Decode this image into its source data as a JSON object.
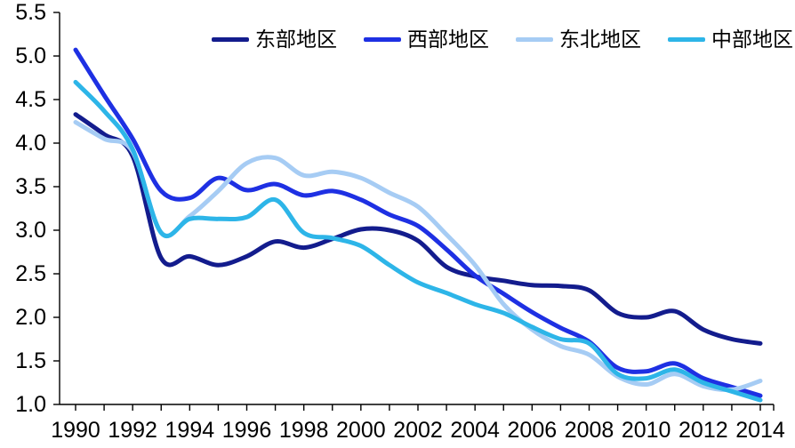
{
  "chart_data": {
    "type": "line",
    "title": "",
    "xlabel": "",
    "ylabel": "",
    "x": [
      1990,
      1991,
      1992,
      1993,
      1994,
      1995,
      1996,
      1997,
      1998,
      1999,
      2000,
      2001,
      2002,
      2003,
      2004,
      2005,
      2006,
      2007,
      2008,
      2009,
      2010,
      2011,
      2012,
      2013,
      2014
    ],
    "x_tick_label_years": [
      1990,
      1992,
      1994,
      1996,
      1998,
      2000,
      2002,
      2004,
      2006,
      2008,
      2010,
      2012,
      2014
    ],
    "x_tick_labels": [
      "1990",
      "1992",
      "1994",
      "1996",
      "1998",
      "2000",
      "2002",
      "2004",
      "2006",
      "2008",
      "2010",
      "2012",
      "2014"
    ],
    "y_tick_labels": [
      "5.5",
      "5.0",
      "4.5",
      "4.0",
      "3.5",
      "3.0",
      "2.5",
      "2.0",
      "1.5",
      "1.0"
    ],
    "y_tick_values": [
      5.5,
      5.0,
      4.5,
      4.0,
      3.5,
      3.0,
      2.5,
      2.0,
      1.5,
      1.0
    ],
    "ylim": [
      1.0,
      5.5
    ],
    "y_step": 0.5,
    "grid": false,
    "smooth_lines": true,
    "legend_position": "top",
    "axis_color": "#000000",
    "text_color": "#000000",
    "series": [
      {
        "name": "东部地区",
        "color": "#131C8D",
        "values": [
          4.33,
          4.1,
          3.85,
          2.68,
          2.7,
          2.6,
          2.7,
          2.87,
          2.8,
          2.9,
          3.01,
          3.0,
          2.88,
          2.58,
          2.47,
          2.42,
          2.37,
          2.36,
          2.31,
          2.05,
          2.0,
          2.07,
          1.86,
          1.75,
          1.7
        ]
      },
      {
        "name": "西部地区",
        "color": "#1E30E3",
        "values": [
          5.07,
          4.55,
          4.05,
          3.45,
          3.37,
          3.6,
          3.46,
          3.53,
          3.4,
          3.45,
          3.35,
          3.18,
          3.05,
          2.78,
          2.48,
          2.27,
          2.06,
          1.88,
          1.72,
          1.42,
          1.38,
          1.47,
          1.3,
          1.2,
          1.1
        ]
      },
      {
        "name": "东北地区",
        "color": "#A6CCF4",
        "values": [
          4.24,
          4.05,
          3.9,
          2.97,
          3.16,
          3.45,
          3.77,
          3.83,
          3.63,
          3.67,
          3.6,
          3.43,
          3.27,
          2.95,
          2.6,
          2.15,
          1.86,
          1.67,
          1.57,
          1.32,
          1.23,
          1.35,
          1.21,
          1.17,
          1.27
        ]
      },
      {
        "name": "中部地区",
        "color": "#2DB5E8",
        "values": [
          4.7,
          4.37,
          3.93,
          2.97,
          3.13,
          3.13,
          3.15,
          3.35,
          2.97,
          2.91,
          2.82,
          2.6,
          2.4,
          2.28,
          2.15,
          2.05,
          1.89,
          1.75,
          1.7,
          1.35,
          1.3,
          1.4,
          1.25,
          1.15,
          1.05
        ]
      }
    ]
  }
}
